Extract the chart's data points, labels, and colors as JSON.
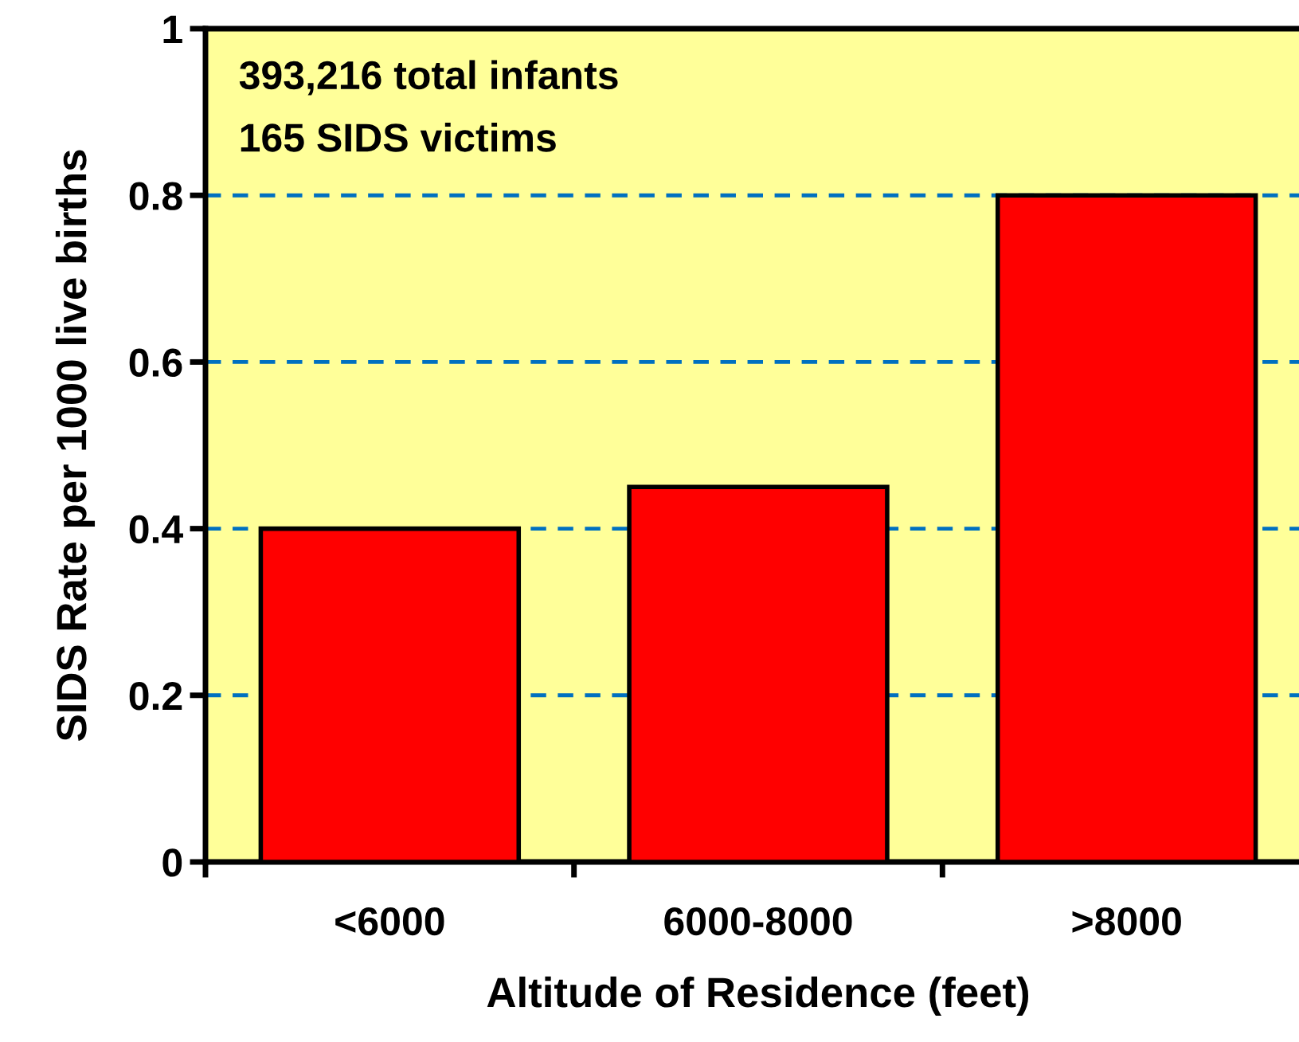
{
  "chart_data": {
    "type": "bar",
    "xlabel": "Altitude of Residence (feet)",
    "ylabel": "SIDS Rate per 1000 live births",
    "categories": [
      "<6000",
      "6000-8000",
      ">8000"
    ],
    "values": [
      0.4,
      0.45,
      0.8
    ],
    "color": "#ff0000",
    "ylim": [
      0,
      1
    ],
    "yticks": [
      0,
      0.2,
      0.4,
      0.6,
      0.8,
      1
    ],
    "grid": "y",
    "annotations": [
      "393,216 total infants",
      "165 SIDS victims"
    ]
  }
}
